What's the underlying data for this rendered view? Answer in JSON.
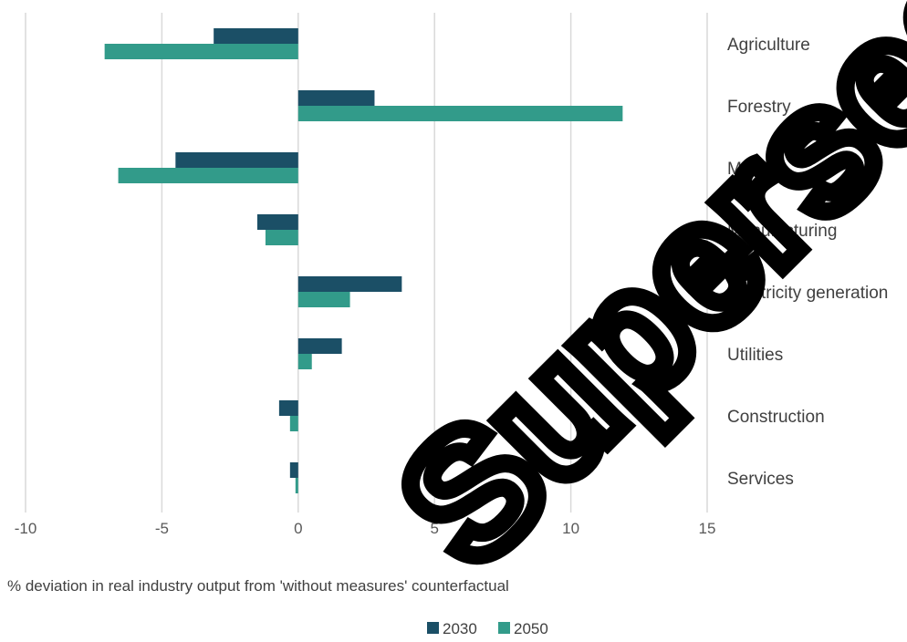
{
  "chart_data": {
    "type": "bar",
    "orientation": "horizontal",
    "categories": [
      "Agriculture",
      "Forestry",
      "Mining",
      "Manufacturing",
      "Electricity generation",
      "Utilities",
      "Construction",
      "Services"
    ],
    "series": [
      {
        "name": "2030",
        "color": "#1b4f66",
        "values": [
          -3.1,
          2.8,
          -4.5,
          -1.5,
          3.8,
          1.6,
          -0.7,
          -0.3
        ]
      },
      {
        "name": "2050",
        "color": "#329b8a",
        "values": [
          -7.1,
          11.9,
          -6.6,
          -1.2,
          1.9,
          0.5,
          -0.3,
          -0.1
        ]
      }
    ],
    "xlabel": "% deviation in real industry output from 'without measures' counterfactual",
    "xlim": [
      -10,
      15
    ],
    "xticks": [
      -10,
      -5,
      0,
      5,
      10,
      15
    ],
    "grid": "vertical",
    "legend_position": "bottom"
  },
  "watermark": "Superseded"
}
